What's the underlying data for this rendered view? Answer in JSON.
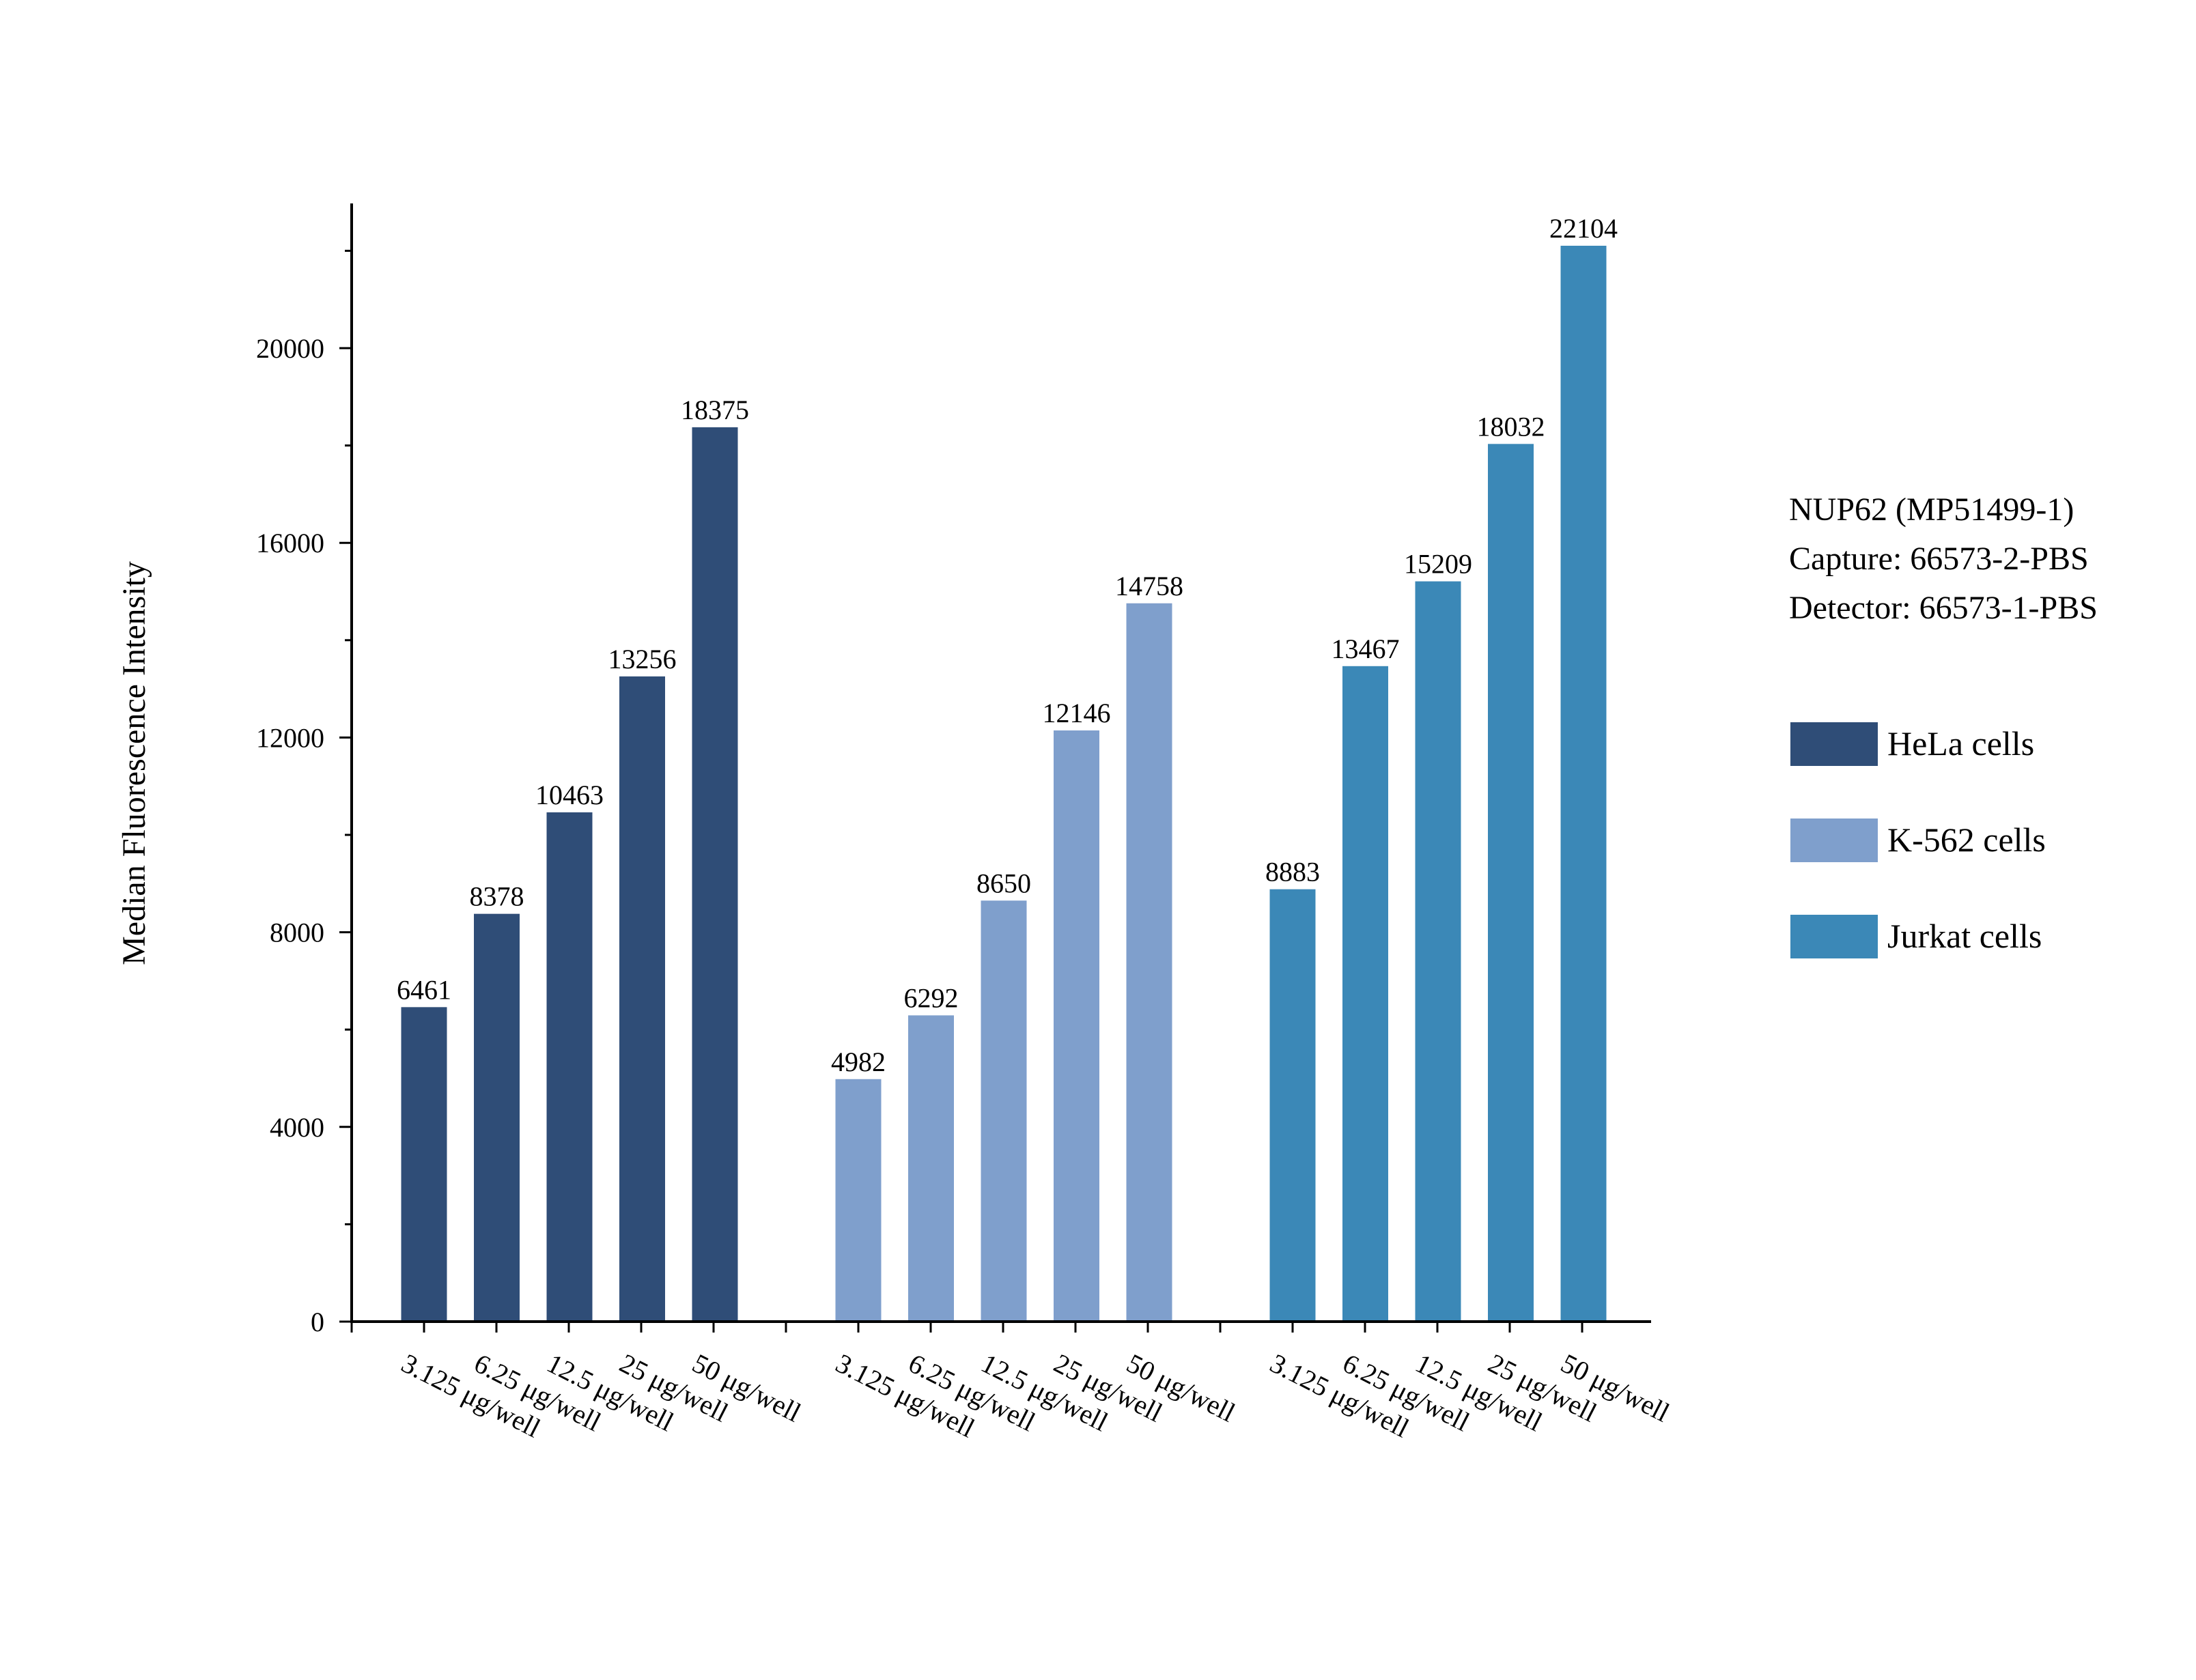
{
  "chart_data": {
    "type": "bar",
    "ylabel": "Median Fluorescence Intensity",
    "xlabel": "",
    "ylim": [
      0,
      23000
    ],
    "yticks": [
      0,
      4000,
      8000,
      12000,
      16000,
      20000
    ],
    "grid": false,
    "legend_position": "right",
    "categories": [
      "3.125 μg/well",
      "6.25 μg/well",
      "12.5 μg/well",
      "25 μg/well",
      "50 μg/well"
    ],
    "series": [
      {
        "name": "HeLa cells",
        "color": "#2F4D77",
        "values": [
          6461,
          8378,
          10463,
          13256,
          18375
        ]
      },
      {
        "name": "K-562 cells",
        "color": "#7F9FCC",
        "values": [
          4982,
          6292,
          8650,
          12146,
          14758
        ]
      },
      {
        "name": "Jurkat cells",
        "color": "#3B88B7",
        "values": [
          8883,
          13467,
          15209,
          18032,
          22104
        ]
      }
    ],
    "info_lines": [
      "NUP62 (MP51499-1)",
      "Capture: 66573-2-PBS",
      "Detector: 66573-1-PBS"
    ]
  }
}
